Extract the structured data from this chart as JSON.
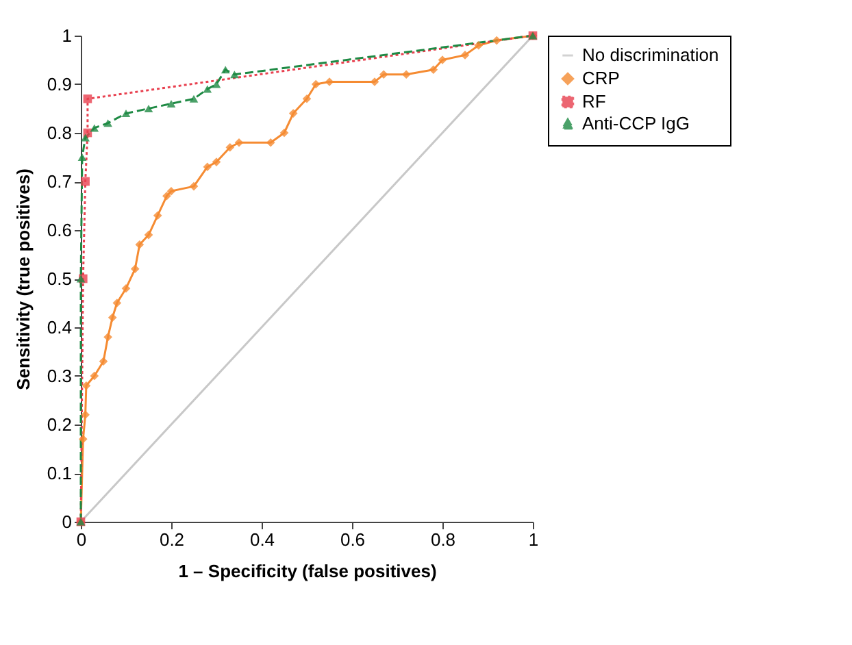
{
  "chart_data": {
    "type": "line",
    "xlabel": "1 – Specificity (false positives)",
    "ylabel": "Sensitivity (true positives)",
    "xlim": [
      0,
      1
    ],
    "ylim": [
      0,
      1
    ],
    "xticks": [
      0,
      0.2,
      0.4,
      0.6,
      0.8,
      1
    ],
    "yticks": [
      0,
      0.1,
      0.2,
      0.3,
      0.4,
      0.5,
      0.6,
      0.7,
      0.8,
      0.9,
      1
    ],
    "grid": false,
    "legend": "right",
    "series": [
      {
        "name": "No discrimination",
        "color": "#c8c8c8",
        "marker": "none",
        "line_style": "solid",
        "x": [
          0,
          1
        ],
        "values": [
          0,
          1
        ]
      },
      {
        "name": "CRP",
        "color": "#f58b32",
        "marker": "diamond",
        "line_style": "solid",
        "x": [
          0,
          0.005,
          0.01,
          0.012,
          0.03,
          0.05,
          0.06,
          0.07,
          0.08,
          0.1,
          0.12,
          0.13,
          0.15,
          0.17,
          0.19,
          0.2,
          0.25,
          0.28,
          0.3,
          0.33,
          0.35,
          0.42,
          0.45,
          0.47,
          0.5,
          0.52,
          0.55,
          0.65,
          0.67,
          0.72,
          0.78,
          0.8,
          0.85,
          0.88,
          0.92,
          1
        ],
        "values": [
          0,
          0.17,
          0.22,
          0.28,
          0.3,
          0.33,
          0.38,
          0.42,
          0.45,
          0.48,
          0.52,
          0.57,
          0.59,
          0.63,
          0.67,
          0.68,
          0.69,
          0.73,
          0.74,
          0.77,
          0.78,
          0.78,
          0.8,
          0.84,
          0.87,
          0.9,
          0.905,
          0.905,
          0.92,
          0.92,
          0.93,
          0.95,
          0.96,
          0.98,
          0.99,
          1
        ]
      },
      {
        "name": "RF",
        "color": "#e8404f",
        "marker": "square",
        "line_style": "dotted",
        "x": [
          0,
          0.005,
          0.01,
          0.015,
          0.015,
          1
        ],
        "values": [
          0,
          0.5,
          0.7,
          0.8,
          0.87,
          1
        ]
      },
      {
        "name": "Anti-CCP IgG",
        "color": "#1e8a44",
        "marker": "triangle",
        "line_style": "dashed",
        "x": [
          0,
          0,
          0.003,
          0.01,
          0.03,
          0.06,
          0.1,
          0.15,
          0.2,
          0.25,
          0.28,
          0.3,
          0.32,
          0.34,
          1
        ],
        "values": [
          0,
          0.5,
          0.75,
          0.79,
          0.81,
          0.82,
          0.84,
          0.85,
          0.86,
          0.87,
          0.89,
          0.9,
          0.93,
          0.92,
          1
        ]
      }
    ]
  }
}
